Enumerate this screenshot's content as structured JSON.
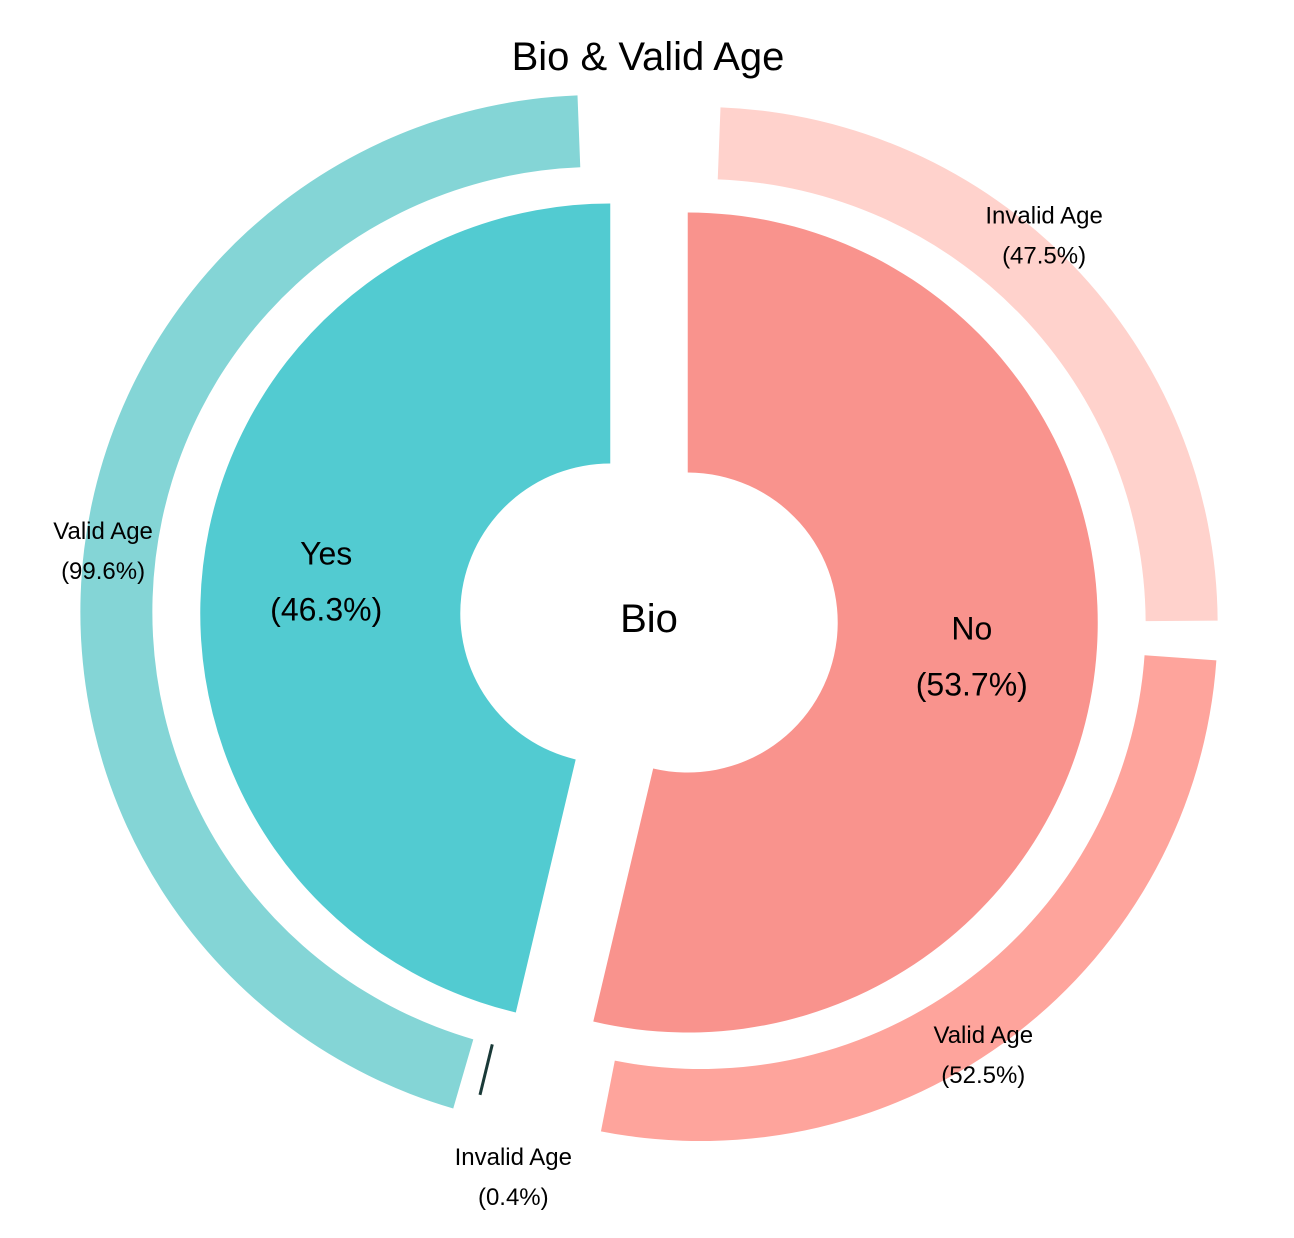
{
  "chart_data": {
    "type": "pie",
    "title": "Bio & Valid Age",
    "center_label": "Bio",
    "inner_ring": [
      {
        "name": "Yes",
        "percent": 46.3,
        "percent_label": "(46.3%)",
        "color": "#52CBD1"
      },
      {
        "name": "No",
        "percent": 53.7,
        "percent_label": "(53.7%)",
        "color": "#F9938D"
      }
    ],
    "outer_ring": [
      {
        "parent": "Yes",
        "name": "Valid Age",
        "percent": 99.6,
        "percent_label": "(99.6%)",
        "color": "#84D5D6"
      },
      {
        "parent": "Yes",
        "name": "Invalid Age",
        "percent": 0.4,
        "percent_label": "(0.4%)",
        "color": "#4DC9C3"
      },
      {
        "parent": "No",
        "name": "Valid Age",
        "percent": 52.5,
        "percent_label": "(52.5%)",
        "color": "#FEA49C"
      },
      {
        "parent": "No",
        "name": "Invalid Age",
        "percent": 47.5,
        "percent_label": "(47.5%)",
        "color": "#FFD2CC"
      }
    ]
  }
}
